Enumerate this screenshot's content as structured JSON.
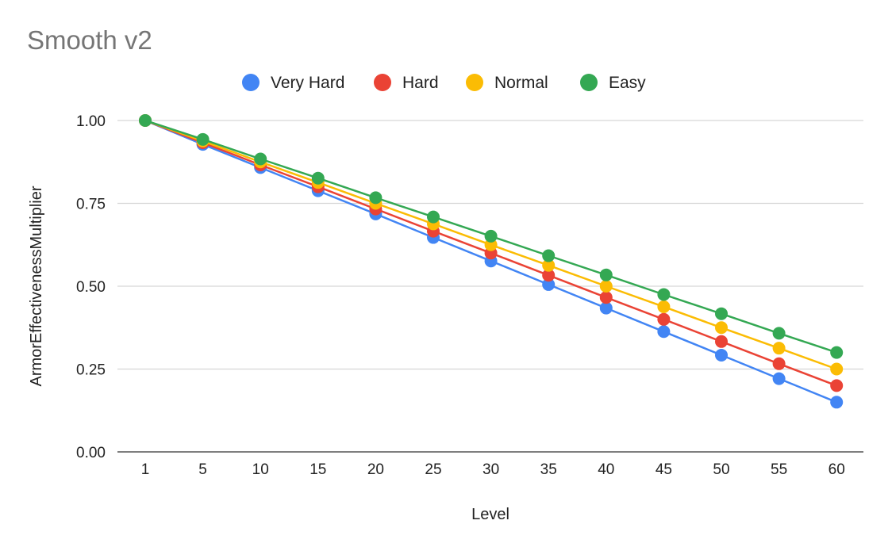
{
  "chart_data": {
    "type": "line",
    "title": "Smooth v2",
    "xlabel": "Level",
    "ylabel": "ArmorEffectivenessMultiplier",
    "categories": [
      "1",
      "5",
      "10",
      "15",
      "20",
      "25",
      "30",
      "35",
      "40",
      "45",
      "50",
      "55",
      "60"
    ],
    "ylim": [
      0,
      1
    ],
    "yticks": [
      "0.00",
      "0.25",
      "0.50",
      "0.75",
      "1.00"
    ],
    "grid": true,
    "legend_position": "top",
    "series": [
      {
        "name": "Very Hard",
        "color": "#4285f4",
        "values": [
          1.0,
          0.928,
          0.858,
          0.788,
          0.718,
          0.647,
          0.576,
          0.505,
          0.434,
          0.363,
          0.292,
          0.221,
          0.15
        ]
      },
      {
        "name": "Hard",
        "color": "#ea4335",
        "values": [
          1.0,
          0.933,
          0.866,
          0.8,
          0.733,
          0.666,
          0.6,
          0.533,
          0.466,
          0.4,
          0.333,
          0.266,
          0.2
        ]
      },
      {
        "name": "Normal",
        "color": "#fbbc04",
        "values": [
          1.0,
          0.938,
          0.875,
          0.813,
          0.75,
          0.688,
          0.625,
          0.563,
          0.5,
          0.438,
          0.375,
          0.313,
          0.25
        ]
      },
      {
        "name": "Easy",
        "color": "#34a853",
        "values": [
          1.0,
          0.943,
          0.884,
          0.826,
          0.767,
          0.709,
          0.651,
          0.592,
          0.534,
          0.475,
          0.417,
          0.358,
          0.3
        ]
      }
    ]
  }
}
